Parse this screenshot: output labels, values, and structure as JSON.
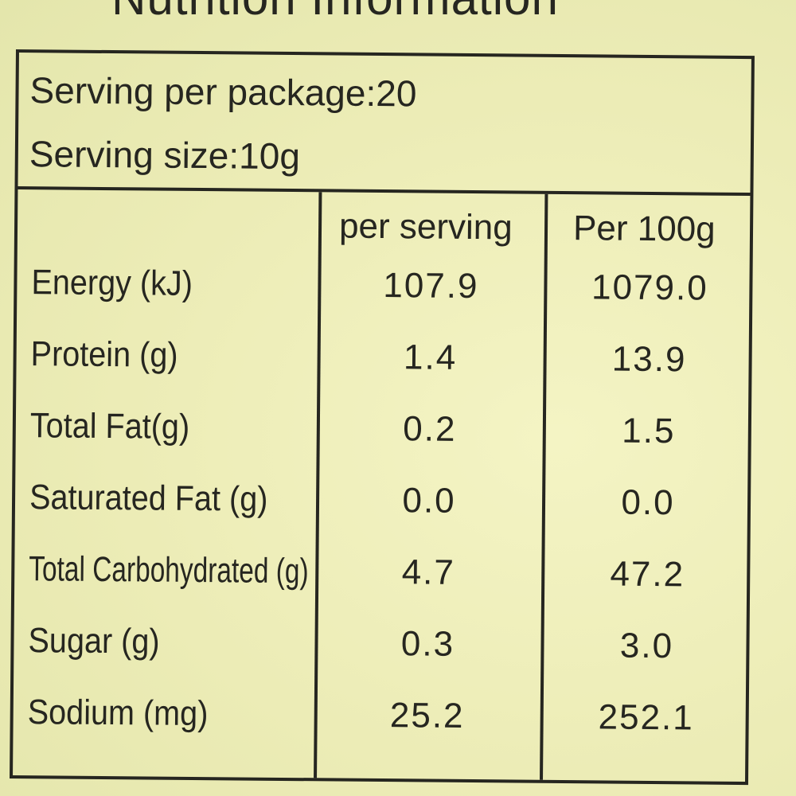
{
  "title": "Nutrition Information",
  "serving": {
    "per_package": "Serving per package:20",
    "size": "Serving size:10g"
  },
  "columns": [
    "per serving",
    "Per 100g"
  ],
  "rows": [
    {
      "name": "Energy (kJ)",
      "per_serving": "107.9",
      "per_100g": "1079.0"
    },
    {
      "name": "Protein (g)",
      "per_serving": "1.4",
      "per_100g": "13.9"
    },
    {
      "name": "Total Fat(g)",
      "per_serving": "0.2",
      "per_100g": "1.5"
    },
    {
      "name": "Saturated Fat (g)",
      "per_serving": "0.0",
      "per_100g": "0.0"
    },
    {
      "name": "Total Carbohydrated (g)",
      "per_serving": "4.7",
      "per_100g": "47.2"
    },
    {
      "name": "Sugar (g)",
      "per_serving": "0.3",
      "per_100g": "3.0"
    },
    {
      "name": "Sodium (mg)",
      "per_serving": "25.2",
      "per_100g": "252.1"
    }
  ]
}
